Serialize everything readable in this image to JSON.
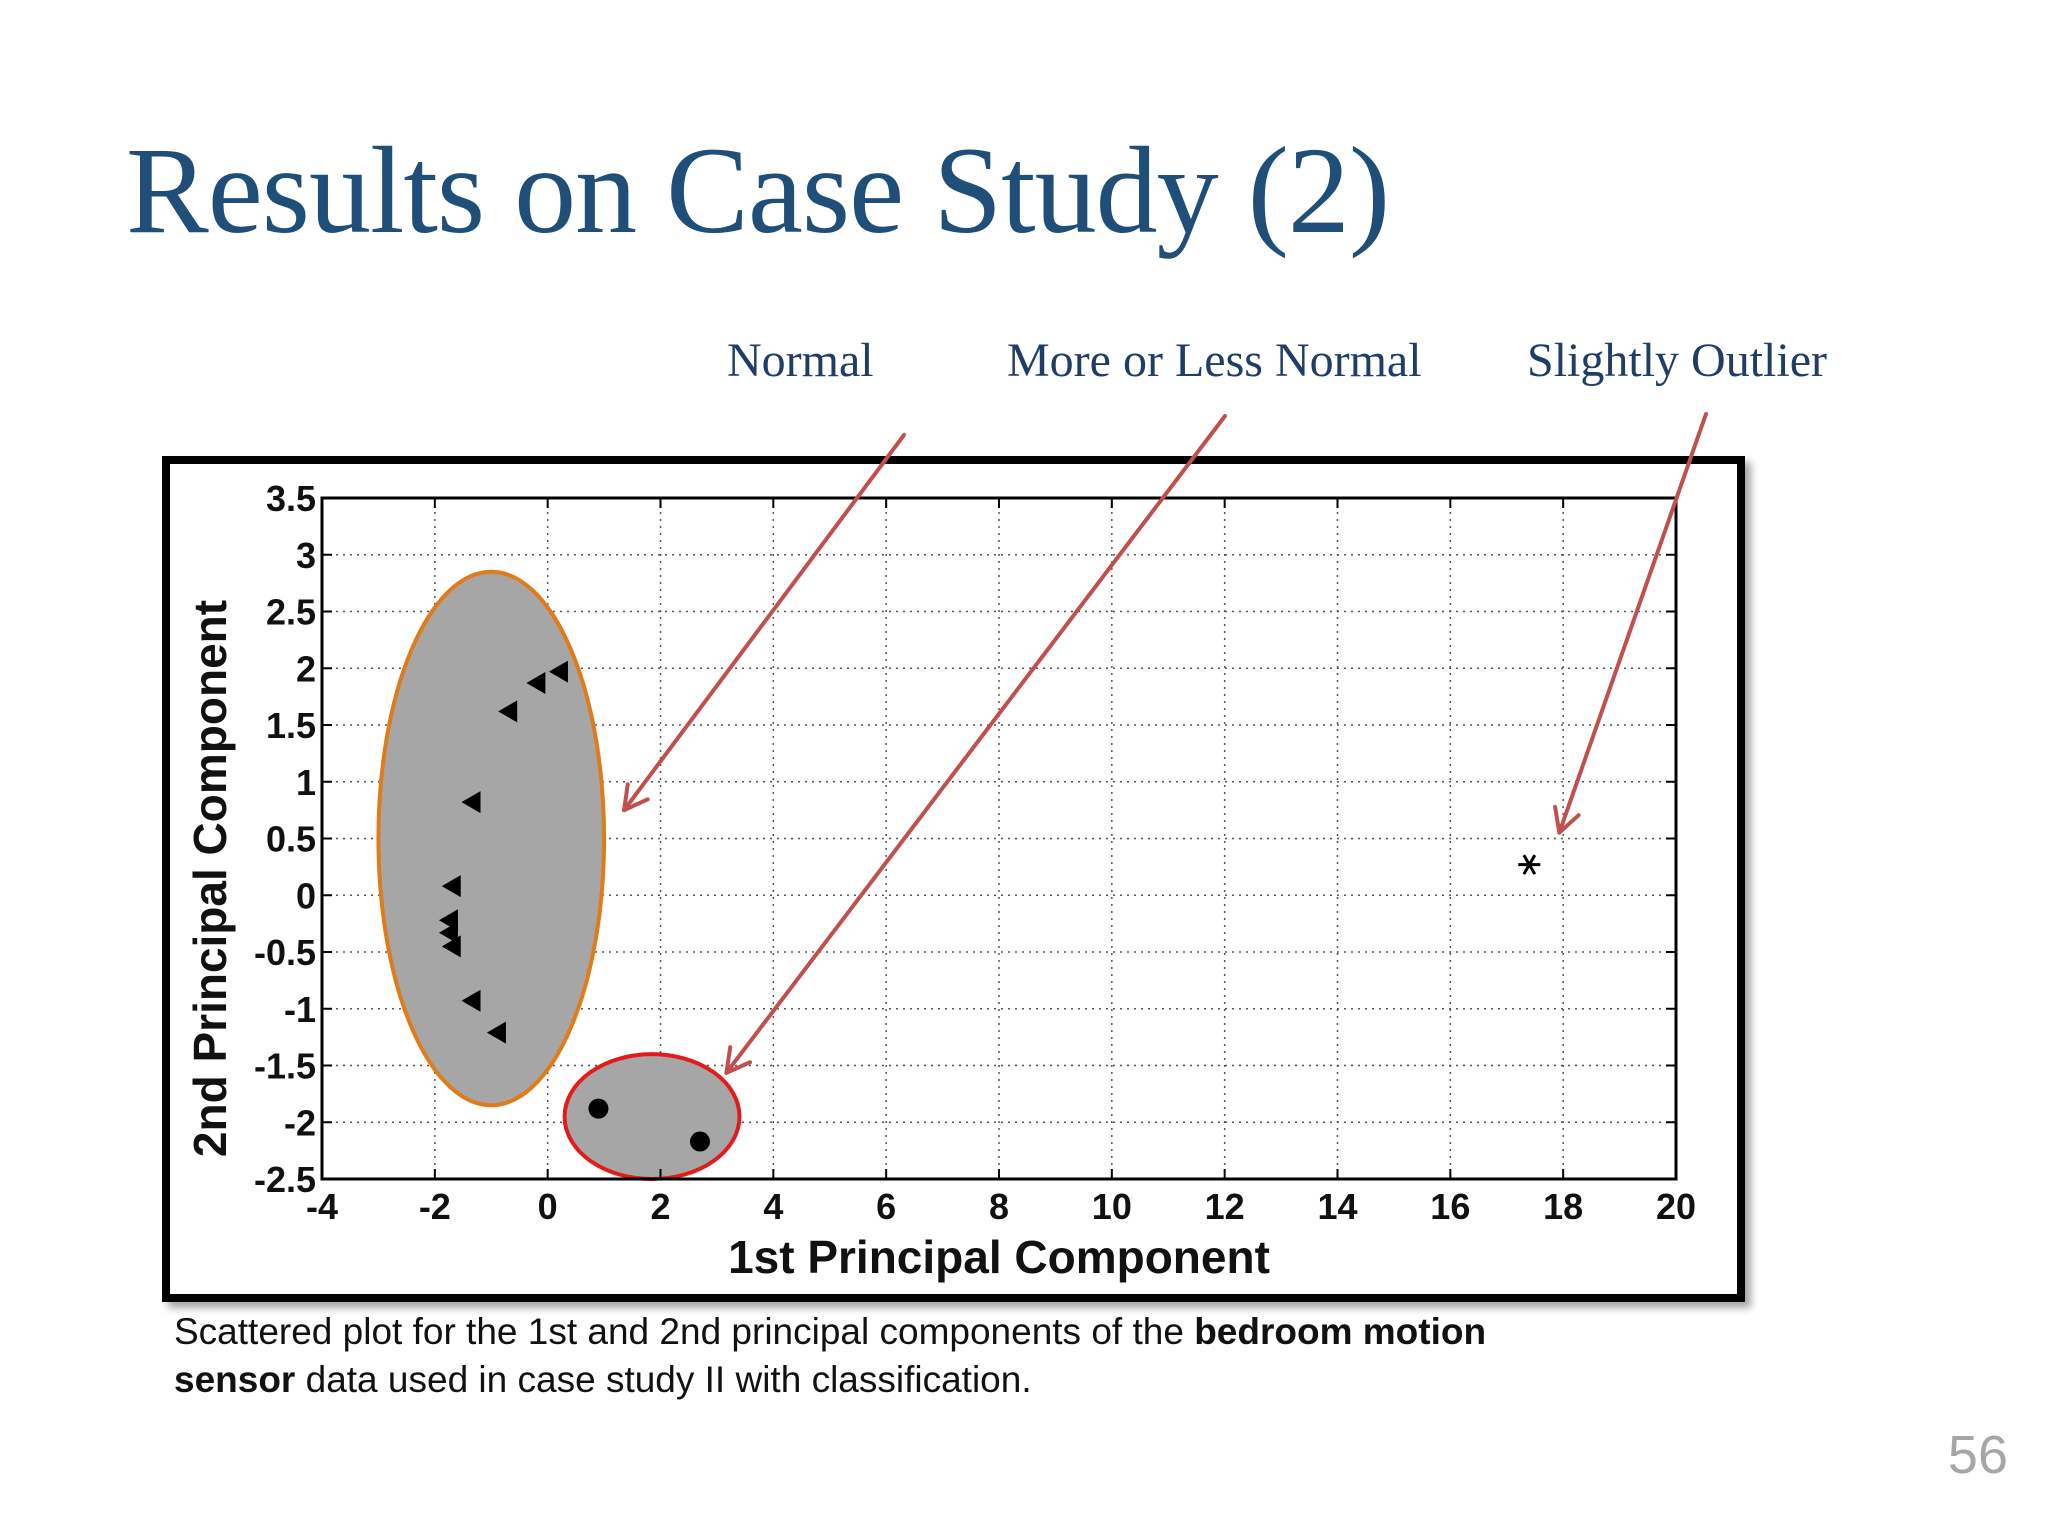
{
  "slide": {
    "title": "Results on Case Study (2)",
    "page_number": "56",
    "caption_part1": "Scattered plot for the 1st and 2nd principal components of the ",
    "caption_bold1": "bedroom motion",
    "caption_bold2": "sensor",
    "caption_part2": " data used in case study II with classification."
  },
  "callouts": {
    "normal": "Normal",
    "more_or_less": "More or Less Normal",
    "slightly_outlier": "Slightly Outlier"
  },
  "colors": {
    "title": "#1f4e79",
    "arrow": "#c0504d",
    "ellipse_normal_stroke": "#e07b1a",
    "ellipse_more_stroke": "#e31b1b",
    "ellipse_fill": "#a6a6a6",
    "grid": "#555555"
  },
  "chart_data": {
    "type": "scatter",
    "title": "",
    "xlabel": "1st Principal Component",
    "ylabel": "2nd Principal Component",
    "xlim": [
      -4,
      20
    ],
    "ylim": [
      -2.5,
      3.5
    ],
    "xticks": [
      -4,
      -2,
      0,
      2,
      4,
      6,
      8,
      10,
      12,
      14,
      16,
      18,
      20
    ],
    "yticks": [
      -2.5,
      -2,
      -1.5,
      -1,
      -0.5,
      0,
      0.5,
      1,
      1.5,
      2,
      2.5,
      3,
      3.5
    ],
    "grid": true,
    "series": [
      {
        "marker": "triangle-left",
        "points": [
          [
            0.2,
            1.97
          ],
          [
            -0.2,
            1.87
          ],
          [
            -0.7,
            1.62
          ],
          [
            -1.35,
            0.82
          ],
          [
            -1.7,
            0.08
          ],
          [
            -1.75,
            -0.22
          ],
          [
            -1.75,
            -0.33
          ],
          [
            -1.7,
            -0.45
          ],
          [
            -1.35,
            -0.93
          ],
          [
            -0.9,
            -1.21
          ]
        ]
      },
      {
        "marker": "circle",
        "points": [
          [
            0.9,
            -1.88
          ],
          [
            2.7,
            -2.17
          ]
        ]
      },
      {
        "marker": "asterisk",
        "points": [
          [
            17.4,
            0.27
          ]
        ]
      }
    ],
    "groups": [
      {
        "label": "Normal",
        "center": [
          -1.0,
          0.5
        ],
        "radius": [
          2.0,
          2.35
        ]
      },
      {
        "label": "More or Less Normal",
        "center": [
          1.85,
          -1.95
        ],
        "radius": [
          1.55,
          0.55
        ]
      },
      {
        "label": "Slightly Outlier",
        "center": [
          17.4,
          0.27
        ]
      }
    ]
  }
}
